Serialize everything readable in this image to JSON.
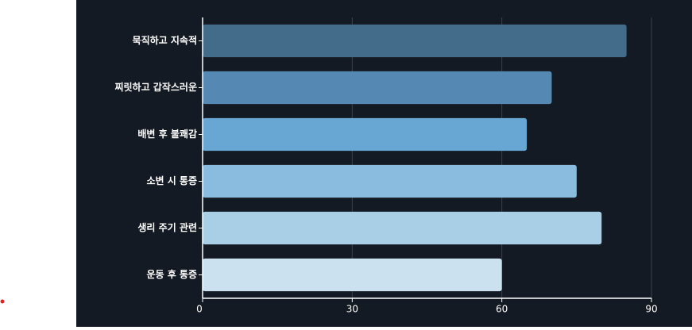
{
  "chart_data": {
    "type": "bar",
    "orientation": "horizontal",
    "categories": [
      "묵직하고 지속적",
      "찌릿하고 갑작스러운",
      "배변 후 불쾌감",
      "소변 시 통증",
      "생리 주기 관련",
      "운동 후 통증"
    ],
    "values": [
      85,
      70,
      65,
      75,
      80,
      60
    ],
    "colors": [
      "#436b8a",
      "#5589b4",
      "#68a6d4",
      "#8abce0",
      "#a9cfe7",
      "#cce1f0"
    ],
    "xlim": [
      0,
      90
    ],
    "xticks": [
      0,
      30,
      60,
      90
    ],
    "grid": true
  }
}
